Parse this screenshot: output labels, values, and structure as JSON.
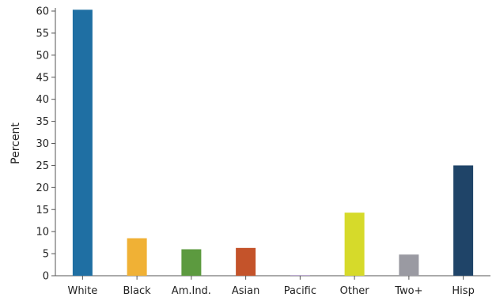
{
  "chart_data": {
    "type": "bar",
    "title": "",
    "xlabel": "",
    "ylabel": "Percent",
    "ylim": [
      0,
      60
    ],
    "yticks": [
      0,
      5,
      10,
      15,
      20,
      25,
      30,
      35,
      40,
      45,
      50,
      55,
      60
    ],
    "grid": false,
    "legend": "none",
    "categories": [
      "White",
      "Black",
      "Am.Ind.",
      "Asian",
      "Pacific",
      "Other",
      "Two+",
      "Hisp"
    ],
    "values": [
      60.3,
      8.5,
      6.0,
      6.3,
      0.1,
      14.3,
      4.8,
      25.0
    ],
    "colors": [
      "#1f6fa3",
      "#f0b135",
      "#5c9a3f",
      "#c4532a",
      "#8b6bb0",
      "#d6da2a",
      "#9a9aa2",
      "#1f4468"
    ]
  }
}
